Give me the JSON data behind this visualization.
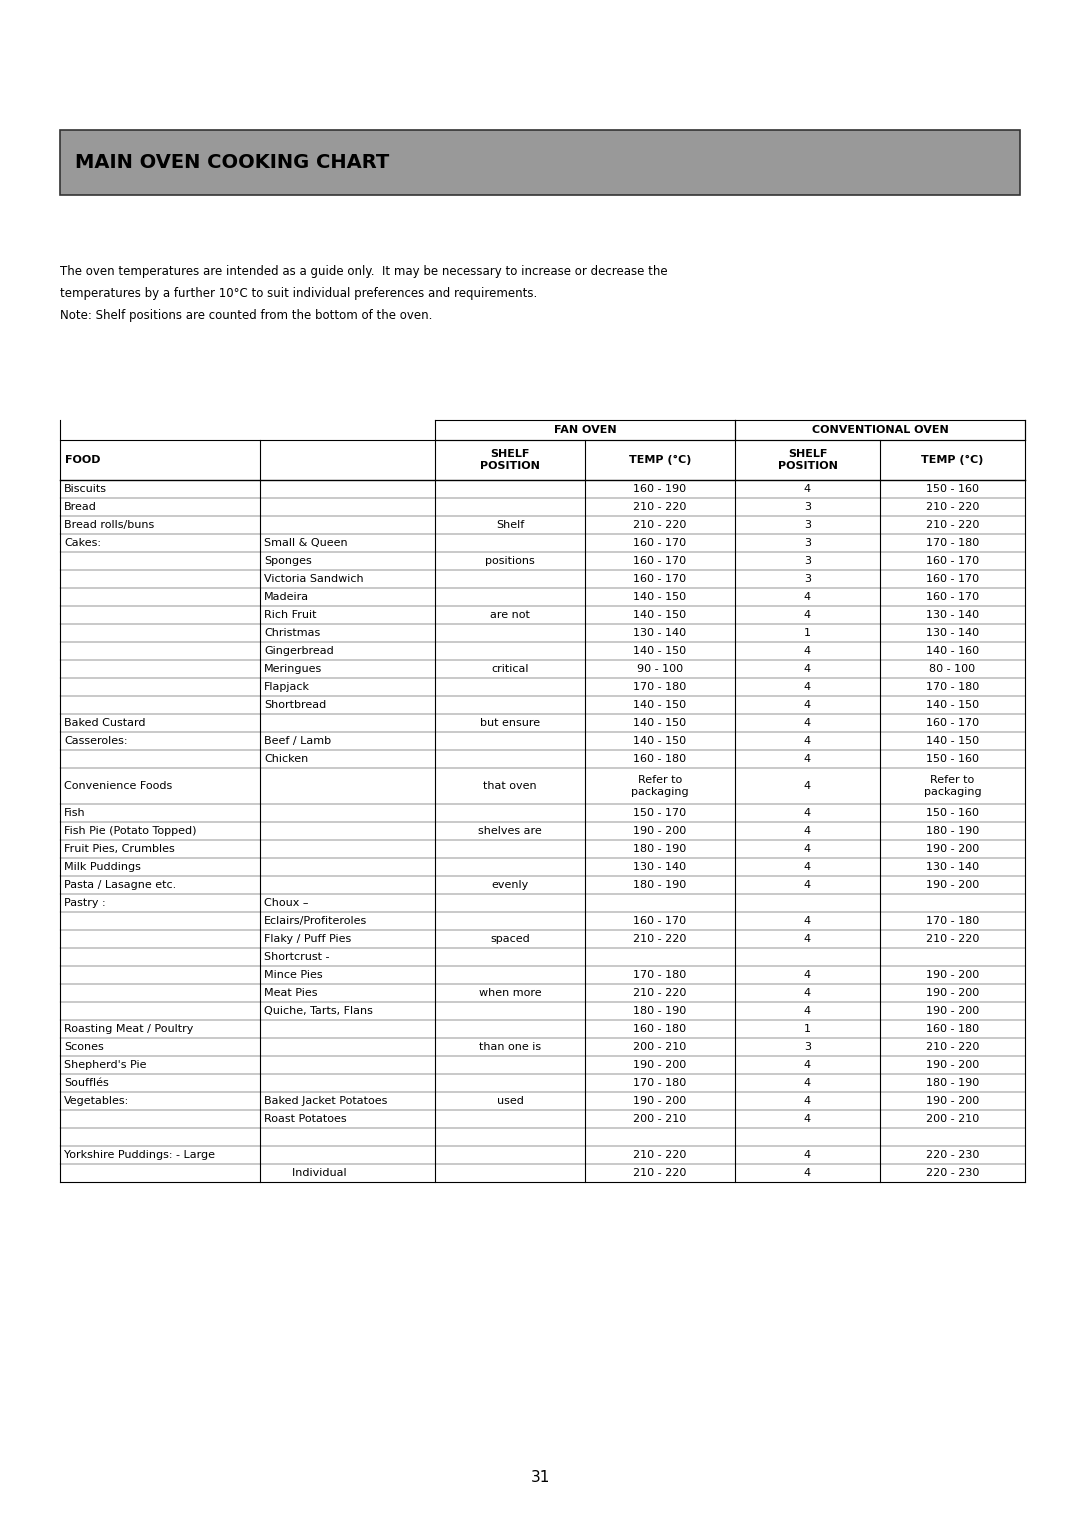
{
  "title": "MAIN OVEN COOKING CHART",
  "intro_line1": "The oven temperatures are intended as a guide only.  It may be necessary to increase or decrease the",
  "intro_line2": "temperatures by a further 10°C to suit individual preferences and requirements.",
  "intro_line3": "Note: Shelf positions are counted from the bottom of the oven.",
  "page_number": "31",
  "header_fan": "FAN OVEN",
  "header_conv": "CONVENTIONAL OVEN",
  "rows": [
    [
      "Biscuits",
      "",
      "",
      "160 - 190",
      "4",
      "150 - 160"
    ],
    [
      "Bread",
      "",
      "",
      "210 - 220",
      "3",
      "210 - 220"
    ],
    [
      "Bread rolls/buns",
      "",
      "Shelf",
      "210 - 220",
      "3",
      "210 - 220"
    ],
    [
      "Cakes:",
      "Small & Queen",
      "",
      "160 - 170",
      "3",
      "170 - 180"
    ],
    [
      "",
      "Sponges",
      "positions",
      "160 - 170",
      "3",
      "160 - 170"
    ],
    [
      "",
      "Victoria Sandwich",
      "",
      "160 - 170",
      "3",
      "160 - 170"
    ],
    [
      "",
      "Madeira",
      "",
      "140 - 150",
      "4",
      "160 - 170"
    ],
    [
      "",
      "Rich Fruit",
      "are not",
      "140 - 150",
      "4",
      "130 - 140"
    ],
    [
      "",
      "Christmas",
      "",
      "130 - 140",
      "1",
      "130 - 140"
    ],
    [
      "",
      "Gingerbread",
      "",
      "140 - 150",
      "4",
      "140 - 160"
    ],
    [
      "",
      "Meringues",
      "critical",
      "90 - 100",
      "4",
      "80 - 100"
    ],
    [
      "",
      "Flapjack",
      "",
      "170 - 180",
      "4",
      "170 - 180"
    ],
    [
      "",
      "Shortbread",
      "",
      "140 - 150",
      "4",
      "140 - 150"
    ],
    [
      "Baked Custard",
      "",
      "but ensure",
      "140 - 150",
      "4",
      "160 - 170"
    ],
    [
      "Casseroles:",
      "Beef / Lamb",
      "",
      "140 - 150",
      "4",
      "140 - 150"
    ],
    [
      "",
      "Chicken",
      "",
      "160 - 180",
      "4",
      "150 - 160"
    ],
    [
      "Convenience Foods",
      "",
      "that oven",
      "Refer to\npackaging",
      "4",
      "Refer to\npackaging"
    ],
    [
      "Fish",
      "",
      "",
      "150 - 170",
      "4",
      "150 - 160"
    ],
    [
      "Fish Pie (Potato Topped)",
      "",
      "shelves are",
      "190 - 200",
      "4",
      "180 - 190"
    ],
    [
      "Fruit Pies, Crumbles",
      "",
      "",
      "180 - 190",
      "4",
      "190 - 200"
    ],
    [
      "Milk Puddings",
      "",
      "",
      "130 - 140",
      "4",
      "130 - 140"
    ],
    [
      "Pasta / Lasagne etc.",
      "",
      "evenly",
      "180 - 190",
      "4",
      "190 - 200"
    ],
    [
      "Pastry :",
      "Choux –",
      "",
      "",
      "",
      ""
    ],
    [
      "",
      "Eclairs/Profiteroles",
      "",
      "160 - 170",
      "4",
      "170 - 180"
    ],
    [
      "",
      "Flaky / Puff Pies",
      "spaced",
      "210 - 220",
      "4",
      "210 - 220"
    ],
    [
      "",
      "Shortcrust -",
      "",
      "",
      "",
      ""
    ],
    [
      "",
      "Mince Pies",
      "",
      "170 - 180",
      "4",
      "190 - 200"
    ],
    [
      "",
      "Meat Pies",
      "when more",
      "210 - 220",
      "4",
      "190 - 200"
    ],
    [
      "",
      "Quiche, Tarts, Flans",
      "",
      "180 - 190",
      "4",
      "190 - 200"
    ],
    [
      "Roasting Meat / Poultry",
      "",
      "",
      "160 - 180",
      "1",
      "160 - 180"
    ],
    [
      "Scones",
      "",
      "than one is",
      "200 - 210",
      "3",
      "210 - 220"
    ],
    [
      "Shepherd's Pie",
      "",
      "",
      "190 - 200",
      "4",
      "190 - 200"
    ],
    [
      "Soufflés",
      "",
      "",
      "170 - 180",
      "4",
      "180 - 190"
    ],
    [
      "Vegetables:",
      "Baked Jacket Potatoes",
      "used",
      "190 - 200",
      "4",
      "190 - 200"
    ],
    [
      "",
      "Roast Potatoes",
      "",
      "200 - 210",
      "4",
      "200 - 210"
    ],
    [
      "",
      "",
      "",
      "",
      "",
      ""
    ],
    [
      "Yorkshire Puddings: - Large",
      "",
      "",
      "210 - 220",
      "4",
      "220 - 230"
    ],
    [
      "",
      "        Individual",
      "",
      "210 - 220",
      "4",
      "220 - 230"
    ]
  ],
  "bg_color": "#ffffff",
  "title_bg": "#999999",
  "title_color": "#000000",
  "font_size_title": 14,
  "font_size_header": 8,
  "font_size_body": 8
}
